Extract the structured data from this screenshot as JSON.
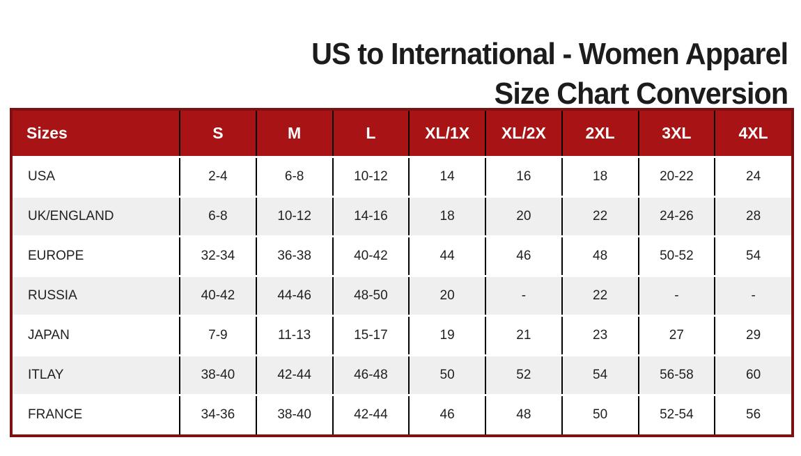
{
  "title": {
    "line1": "US to International - Women Apparel",
    "line2": "Size Chart Conversion"
  },
  "chart_data": {
    "type": "table",
    "title": "US to International - Women Apparel Size Chart Conversion",
    "columns": [
      "Sizes",
      "S",
      "M",
      "L",
      "XL/1X",
      "XL/2X",
      "2XL",
      "3XL",
      "4XL"
    ],
    "rows": [
      {
        "label": "USA",
        "values": [
          "2-4",
          "6-8",
          "10-12",
          "14",
          "16",
          "18",
          "20-22",
          "24"
        ]
      },
      {
        "label": "UK/ENGLAND",
        "values": [
          "6-8",
          "10-12",
          "14-16",
          "18",
          "20",
          "22",
          "24-26",
          "28"
        ]
      },
      {
        "label": "EUROPE",
        "values": [
          "32-34",
          "36-38",
          "40-42",
          "44",
          "46",
          "48",
          "50-52",
          "54"
        ]
      },
      {
        "label": "RUSSIA",
        "values": [
          "40-42",
          "44-46",
          "48-50",
          "20",
          "-",
          "22",
          "-",
          "-"
        ]
      },
      {
        "label": "JAPAN",
        "values": [
          "7-9",
          "11-13",
          "15-17",
          "19",
          "21",
          "23",
          "27",
          "29"
        ]
      },
      {
        "label": "ITLAY",
        "values": [
          "38-40",
          "42-44",
          "46-48",
          "50",
          "52",
          "54",
          "56-58",
          "60"
        ]
      },
      {
        "label": "FRANCE",
        "values": [
          "34-36",
          "38-40",
          "42-44",
          "46",
          "48",
          "50",
          "52-54",
          "56"
        ]
      }
    ],
    "colors": {
      "header_bg": "#A81415",
      "header_text": "#FFFFFF",
      "outer_border": "#7C1113",
      "stripe_bg": "#EFEFEF",
      "grid_line": "#000000",
      "title_text": "#1C1C1C"
    },
    "layout": {
      "striped_rows": "even",
      "first_column_align": "left",
      "value_align": "center"
    }
  }
}
